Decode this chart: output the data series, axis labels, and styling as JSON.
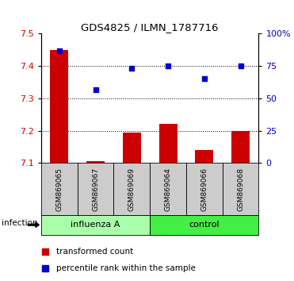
{
  "title": "GDS4825 / ILMN_1787716",
  "samples": [
    "GSM869065",
    "GSM869067",
    "GSM869069",
    "GSM869064",
    "GSM869066",
    "GSM869068"
  ],
  "groups": [
    "influenza A",
    "influenza A",
    "influenza A",
    "control",
    "control",
    "control"
  ],
  "group_labels": [
    "influenza A",
    "control"
  ],
  "transformed_counts": [
    7.45,
    7.105,
    7.195,
    7.22,
    7.14,
    7.2
  ],
  "percentile_ranks_pct": [
    87,
    57,
    73,
    75,
    65,
    75
  ],
  "ylim_left": [
    7.1,
    7.5
  ],
  "ylim_right": [
    0,
    100
  ],
  "yticks_left": [
    7.1,
    7.2,
    7.3,
    7.4,
    7.5
  ],
  "yticks_right": [
    0,
    25,
    50,
    75,
    100
  ],
  "bar_color": "#cc0000",
  "dot_color": "#0000cc",
  "bar_width": 0.5,
  "group_colors": {
    "influenza A": "#aaffaa",
    "control": "#44ee44"
  },
  "legend_items": [
    "transformed count",
    "percentile rank within the sample"
  ],
  "legend_colors": [
    "#cc0000",
    "#0000cc"
  ],
  "infection_label": "infection",
  "axis_label_color_left": "#cc0000",
  "axis_label_color_right": "#0000cc"
}
